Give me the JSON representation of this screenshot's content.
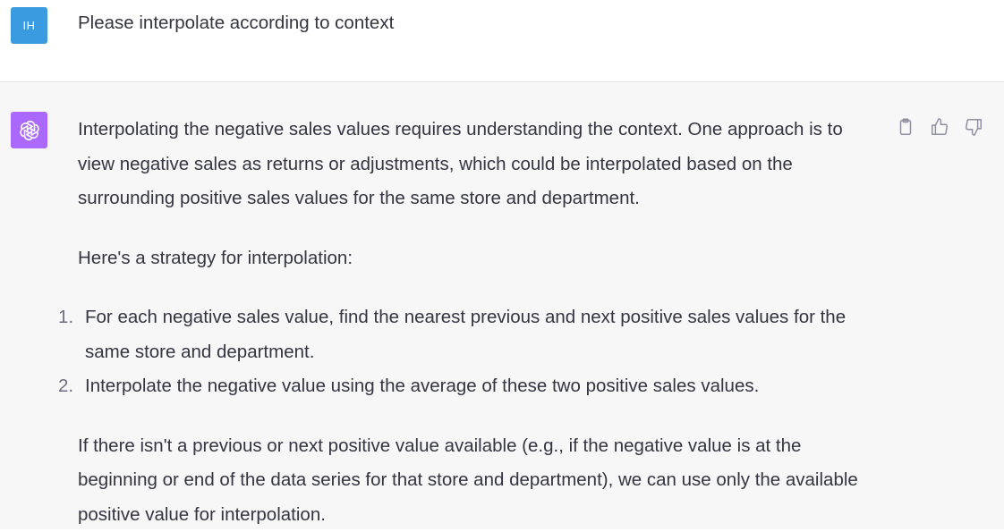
{
  "user": {
    "avatar_initials": "IH",
    "message": "Please interpolate according to context"
  },
  "assistant": {
    "paragraph_1": "Interpolating the negative sales values requires understanding the context. One approach is to view negative sales as returns or adjustments, which could be interpolated based on the surrounding positive sales values for the same store and department.",
    "paragraph_2": "Here's a strategy for interpolation:",
    "steps": [
      {
        "num": "1.",
        "text": "For each negative sales value, find the nearest previous and next positive sales values for the same store and department."
      },
      {
        "num": "2.",
        "text": "Interpolate the negative value using the average of these two positive sales values."
      }
    ],
    "paragraph_3": "If there isn't a previous or next positive value available (e.g., if the negative value is at the beginning or end of the data series for that store and department), we can use only the available positive value for interpolation."
  },
  "icons": {
    "copy": "clipboard-icon",
    "thumbs_up": "thumbs-up-icon",
    "thumbs_down": "thumbs-down-icon",
    "assistant_logo": "openai-logo-icon"
  },
  "colors": {
    "user_avatar_bg": "#3b9be0",
    "assistant_avatar_bg": "#ab68ff",
    "assistant_row_bg": "#f7f7f8"
  }
}
